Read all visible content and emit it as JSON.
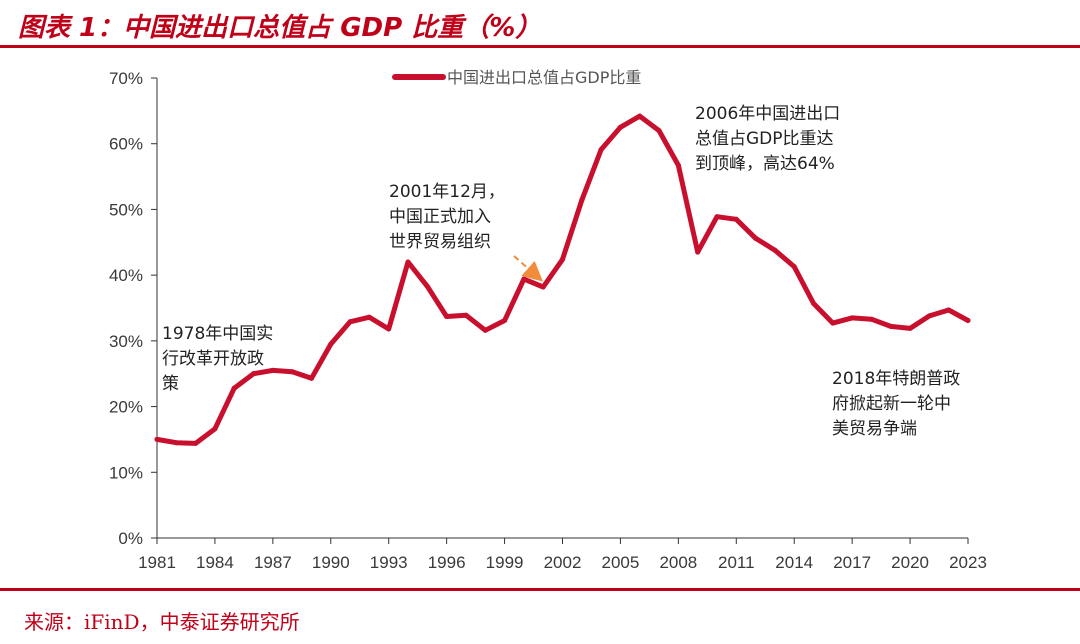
{
  "header": {
    "title": "图表 1：中国进出口总值占 GDP 比重（%）"
  },
  "footer": {
    "source": "来源：iFinD，中泰证券研究所"
  },
  "colors": {
    "accent": "#c00018",
    "series": "#c8102e",
    "arrow": "#f08c3c"
  },
  "chart_data": {
    "type": "line",
    "title": "中国进出口总值占GDP比重（%）",
    "xlabel": "",
    "ylabel": "",
    "xlim": [
      1981,
      2023
    ],
    "ylim": [
      0,
      70
    ],
    "x_ticks": [
      1981,
      1984,
      1987,
      1990,
      1993,
      1996,
      1999,
      2002,
      2005,
      2008,
      2011,
      2014,
      2017,
      2020,
      2023
    ],
    "y_ticks": [
      0,
      10,
      20,
      30,
      40,
      50,
      60,
      70
    ],
    "y_tick_labels": [
      "0%",
      "10%",
      "20%",
      "30%",
      "40%",
      "50%",
      "60%",
      "70%"
    ],
    "grid": false,
    "legend_position": "top-center",
    "series": [
      {
        "name": "中国进出口总值占GDP比重",
        "x": [
          1981,
          1982,
          1983,
          1984,
          1985,
          1986,
          1987,
          1988,
          1989,
          1990,
          1991,
          1992,
          1993,
          1994,
          1995,
          1996,
          1997,
          1998,
          1999,
          2000,
          2001,
          2002,
          2003,
          2004,
          2005,
          2006,
          2007,
          2008,
          2009,
          2010,
          2011,
          2012,
          2013,
          2014,
          2015,
          2016,
          2017,
          2018,
          2019,
          2020,
          2021,
          2022,
          2023
        ],
        "values": [
          15.0,
          14.5,
          14.4,
          16.6,
          22.8,
          25.0,
          25.5,
          25.3,
          24.3,
          29.5,
          32.9,
          33.6,
          31.8,
          42.0,
          38.3,
          33.7,
          33.9,
          31.6,
          33.1,
          39.4,
          38.2,
          42.4,
          51.4,
          59.1,
          62.5,
          64.2,
          62.0,
          56.7,
          43.5,
          48.9,
          48.5,
          45.6,
          43.8,
          41.3,
          35.7,
          32.7,
          33.5,
          33.3,
          32.2,
          31.9,
          33.8,
          34.7,
          33.1
        ]
      }
    ],
    "annotations": [
      {
        "id": "a1978",
        "lines": [
          "1978年中国实",
          "行改革开放政",
          "策"
        ]
      },
      {
        "id": "a2001",
        "lines": [
          "2001年12月，",
          "中国正式加入",
          "世界贸易组织"
        ]
      },
      {
        "id": "a2006",
        "lines": [
          "2006年中国进出口",
          "总值占GDP比重达",
          "到顶峰，高达64%"
        ]
      },
      {
        "id": "a2018",
        "lines": [
          "2018年特朗普政",
          "府掀起新一轮中",
          "美贸易争端"
        ]
      }
    ]
  }
}
